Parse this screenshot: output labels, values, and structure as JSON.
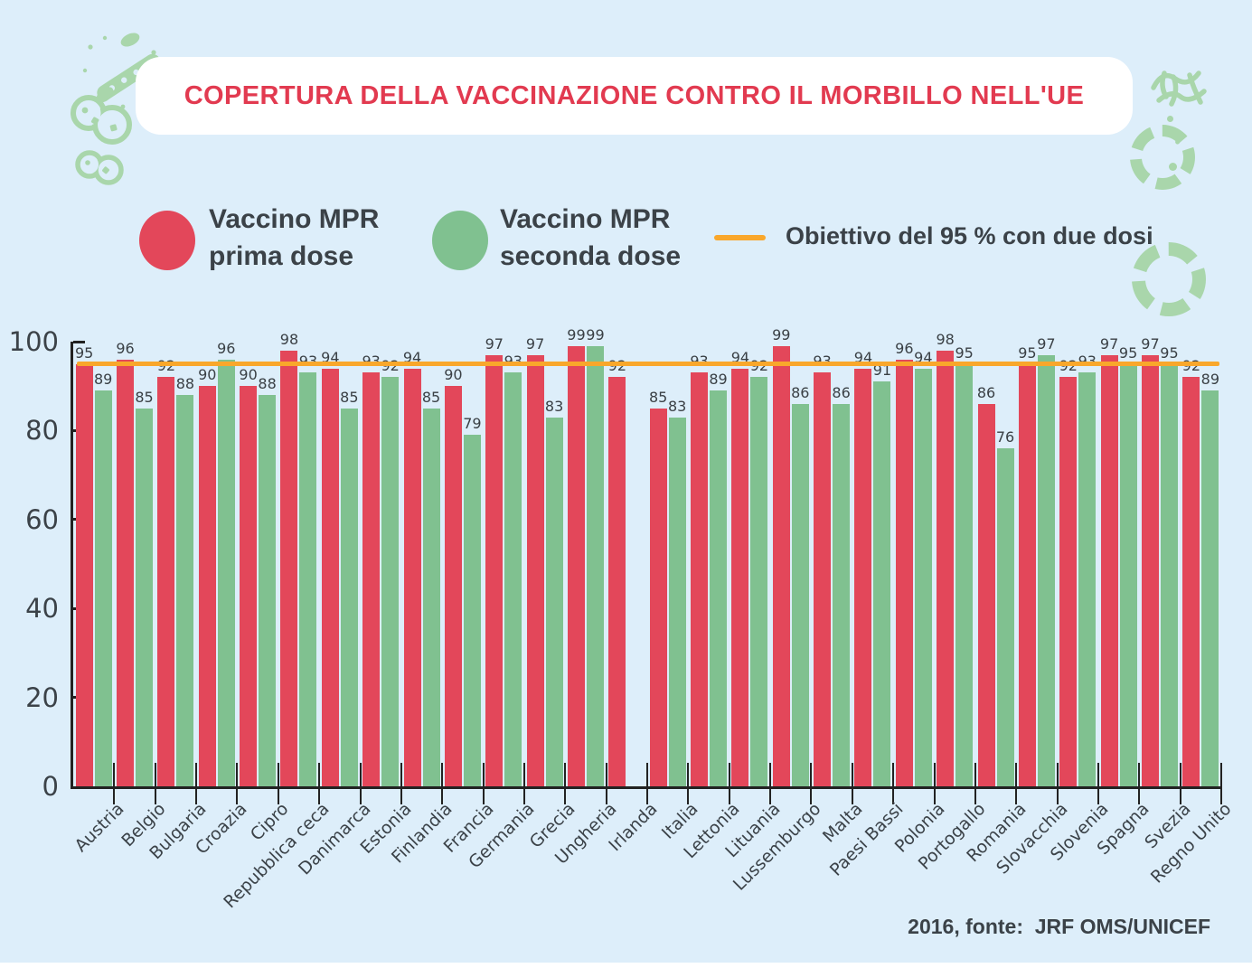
{
  "title": "COPERTURA DELLA VACCINAZIONE CONTRO IL MORBILLO NELL'UE",
  "legend": {
    "first_dose_line1": "Vaccino MPR",
    "first_dose_line2": "prima dose",
    "second_dose_line1": "Vaccino MPR",
    "second_dose_line2": "seconda dose",
    "target_label": "Obiettivo del 95 % con due dosi"
  },
  "source_note": "2016, fonte:  JRF OMS/UNICEF",
  "colors": {
    "background": "#ddeefa",
    "first_dose": "#e3475a",
    "second_dose": "#80c190",
    "target_line": "#f9a72b",
    "title_red": "#e23a50",
    "text_dark": "#3b4248",
    "axis": "#222222",
    "germ_green": "#a9d6ab"
  },
  "chart_data": {
    "type": "bar",
    "title": "Copertura della vaccinazione contro il morbillo nell'UE",
    "categories": [
      "Austria",
      "Belgio",
      "Bulgaria",
      "Croazia",
      "Cipro",
      "Repubblica ceca",
      "Danimarca",
      "Estonia",
      "Finlandia",
      "Francia",
      "Germania",
      "Grecia",
      "Ungheria",
      "Irlanda",
      "Italia",
      "Lettonia",
      "Lituania",
      "Lussemburgo",
      "Malta",
      "Paesi Bassi",
      "Polonia",
      "Portogallo",
      "Romania",
      "Slovacchia",
      "Slovenia",
      "Spagna",
      "Svezia",
      "Regno Unito"
    ],
    "series": [
      {
        "name": "Vaccino MPR prima dose",
        "color": "#e3475a",
        "values": [
          95,
          96,
          92,
          90,
          90,
          98,
          94,
          93,
          94,
          90,
          97,
          97,
          99,
          92,
          85,
          93,
          94,
          99,
          93,
          94,
          96,
          98,
          86,
          95,
          92,
          97,
          97,
          92
        ]
      },
      {
        "name": "Vaccino MPR seconda dose",
        "color": "#80c190",
        "values": [
          89,
          85,
          88,
          96,
          88,
          93,
          85,
          92,
          85,
          79,
          93,
          83,
          99,
          null,
          83,
          89,
          92,
          86,
          86,
          91,
          94,
          95,
          76,
          97,
          93,
          95,
          95,
          89
        ]
      }
    ],
    "target_line": {
      "value": 95,
      "label": "Obiettivo del 95 % con due dosi",
      "color": "#f9a72b"
    },
    "xlabel": "",
    "ylabel": "",
    "ylim": [
      0,
      100
    ],
    "yticks": [
      0,
      20,
      40,
      60,
      80,
      100
    ],
    "grid": false,
    "legend_position": "top"
  }
}
